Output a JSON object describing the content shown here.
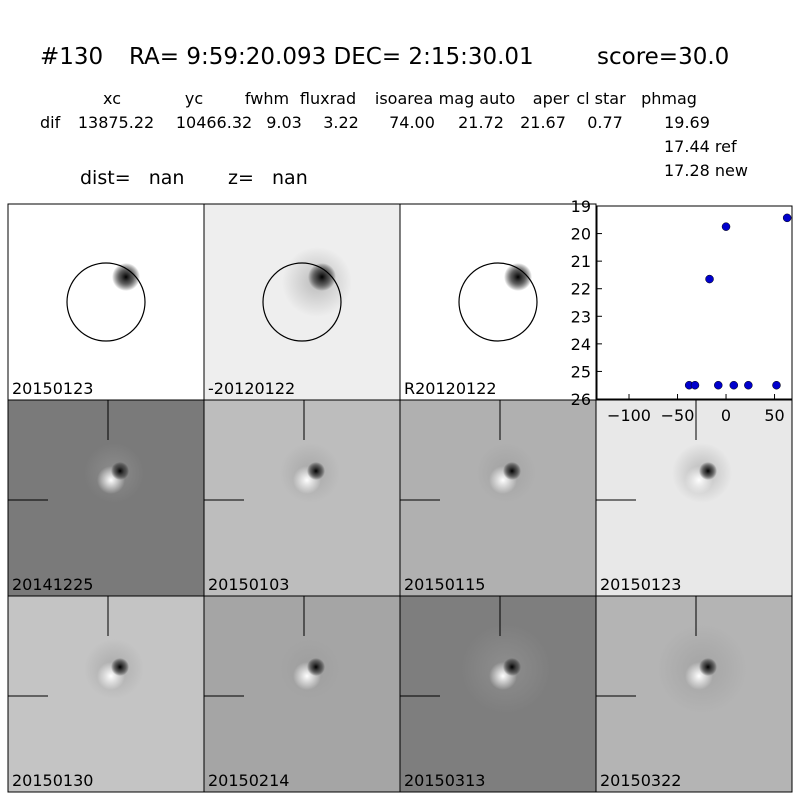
{
  "header": {
    "id": "#130",
    "coords": "RA= 9:59:20.093 DEC= 2:15:30.01",
    "score": "score=30.0",
    "table": {
      "columns": [
        "xc",
        "yc",
        "fwhm",
        "fluxrad",
        "isoarea",
        "mag auto",
        "aper",
        "cl star",
        "phmag"
      ],
      "row_label": "dif",
      "row": [
        "13875.22",
        "10466.32",
        "9.03",
        "3.22",
        "74.00",
        "21.72",
        "21.67",
        "0.77",
        "19.69"
      ],
      "extra": [
        "17.44 ref",
        "17.28 new"
      ]
    },
    "dist": "dist=   nan",
    "z": "z=   nan"
  },
  "stamps": [
    {
      "label": "20150123"
    },
    {
      "label": "-20120122"
    },
    {
      "label": "R20120122"
    },
    {
      "label": "20141225"
    },
    {
      "label": "20150103"
    },
    {
      "label": "20150115"
    },
    {
      "label": "20150123"
    },
    {
      "label": "20150130"
    },
    {
      "label": "20150214"
    },
    {
      "label": "20150313"
    },
    {
      "label": "20150322"
    }
  ],
  "chart_data": {
    "type": "scatter",
    "color": "#0000cc",
    "x": [
      -38,
      -32,
      -17,
      -8,
      0,
      8,
      23,
      52,
      63
    ],
    "values": [
      25.5,
      25.5,
      21.65,
      25.5,
      19.75,
      25.5,
      25.5,
      25.5,
      19.43
    ],
    "xlim": [
      -133,
      68
    ],
    "ylim": [
      26,
      19
    ],
    "xticks": [
      {
        "value": -100,
        "label": "−100"
      },
      {
        "value": -50,
        "label": "−50"
      },
      0,
      50
    ],
    "yticks": [
      19,
      20,
      21,
      22,
      23,
      24,
      25,
      26
    ]
  }
}
